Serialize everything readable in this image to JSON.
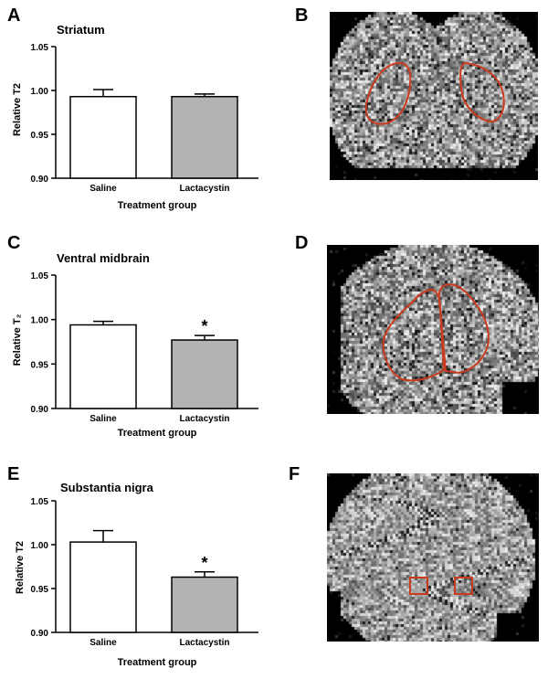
{
  "panels": [
    {
      "letter": "A"
    },
    {
      "letter": "B"
    },
    {
      "letter": "C"
    },
    {
      "letter": "D"
    },
    {
      "letter": "E"
    },
    {
      "letter": "F"
    }
  ],
  "chart_data": [
    {
      "type": "bar",
      "panel": "A",
      "title": "Striatum",
      "xlabel": "Treatment group",
      "ylabel": "Relative T2",
      "ylim": [
        0.9,
        1.05
      ],
      "yticks": [
        "0.90",
        "0.95",
        "1.00",
        "1.05"
      ],
      "categories": [
        "Saline",
        "Lactacystin"
      ],
      "values": [
        0.993,
        0.993
      ],
      "errors": [
        0.008,
        0.003
      ],
      "significance": [
        "",
        ""
      ],
      "bar_colors": [
        "#ffffff",
        "#b3b3b3"
      ]
    },
    {
      "type": "bar",
      "panel": "C",
      "title": "Ventral midbrain",
      "xlabel": "Treatment group",
      "ylabel": "Relative T₂",
      "ylim": [
        0.9,
        1.05
      ],
      "yticks": [
        "0.90",
        "0.95",
        "1.00",
        "1.05"
      ],
      "categories": [
        "Saline",
        "Lactacystin"
      ],
      "values": [
        0.994,
        0.977
      ],
      "errors": [
        0.004,
        0.005
      ],
      "significance": [
        "",
        "*"
      ],
      "bar_colors": [
        "#ffffff",
        "#b3b3b3"
      ]
    },
    {
      "type": "bar",
      "panel": "E",
      "title": "Substantia nigra",
      "xlabel": "Treatment group",
      "ylabel": "Relative T2",
      "ylim": [
        0.9,
        1.05
      ],
      "yticks": [
        "0.90",
        "0.95",
        "1.00",
        "1.05"
      ],
      "categories": [
        "Saline",
        "Lactacystin"
      ],
      "values": [
        1.003,
        0.963
      ],
      "errors": [
        0.013,
        0.006
      ],
      "significance": [
        "",
        "*"
      ],
      "bar_colors": [
        "#ffffff",
        "#b3b3b3"
      ]
    }
  ],
  "images": [
    {
      "panel": "B",
      "description": "coronal MRI T2 map with striatum ROIs",
      "roi_color": "#cc3a1e"
    },
    {
      "panel": "D",
      "description": "coronal MRI T2 map with ventral midbrain ROIs",
      "roi_color": "#cc3a1e"
    },
    {
      "panel": "F",
      "description": "coronal MRI T2 map with substantia nigra ROIs",
      "roi_color": "#cc3a1e"
    }
  ]
}
